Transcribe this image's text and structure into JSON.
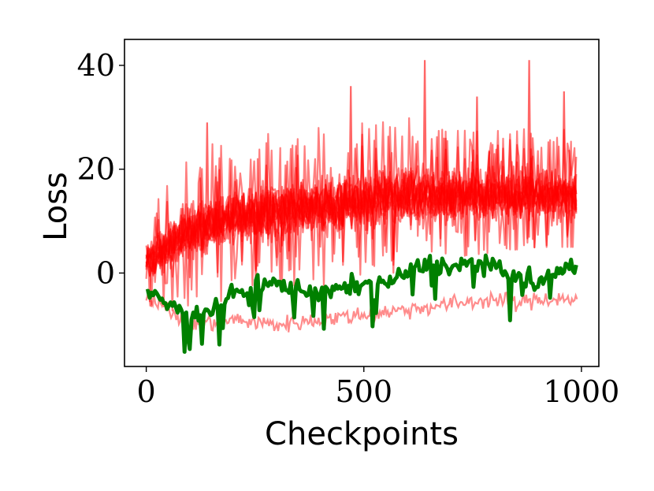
{
  "chart_data": {
    "type": "line",
    "title": "",
    "xlabel": "Checkpoints",
    "ylabel": "Loss",
    "xlim": [
      -50,
      1040
    ],
    "ylim": [
      -18,
      45
    ],
    "x_ticks": [
      0,
      500,
      1000
    ],
    "y_ticks": [
      0,
      20,
      40
    ],
    "grid": false,
    "legend": "none",
    "series": [
      {
        "color": "#ff0000",
        "kind": "red-band",
        "x_start": 0,
        "x_end": 990,
        "trend_x": [
          0,
          100,
          200,
          300,
          400,
          500,
          600,
          700,
          800,
          900,
          990
        ],
        "low": [
          -8,
          -6,
          -3,
          -3,
          -1,
          0,
          3,
          5,
          6,
          7,
          7
        ],
        "mid": [
          2,
          8,
          11,
          12,
          13,
          14,
          15,
          15,
          15,
          15,
          15
        ],
        "high": [
          12,
          22,
          24,
          25,
          26,
          28,
          30,
          30,
          30,
          31,
          31
        ],
        "spikes": [
          [
            140,
            29
          ],
          [
            470,
            36
          ],
          [
            640,
            41
          ],
          [
            760,
            34
          ],
          [
            880,
            41
          ],
          [
            960,
            35
          ]
        ]
      },
      {
        "color": "#ff0000",
        "kind": "red-low-line",
        "x": [
          0,
          100,
          200,
          300,
          400,
          500,
          600,
          700,
          800,
          850,
          900,
          990
        ],
        "y": [
          -4,
          -10,
          -9,
          -10,
          -9,
          -8,
          -7,
          -6,
          -5,
          -6,
          -5,
          -5
        ]
      },
      {
        "color": "#008000",
        "kind": "green",
        "x": [
          0,
          50,
          100,
          150,
          200,
          250,
          300,
          350,
          400,
          450,
          500,
          550,
          600,
          650,
          700,
          750,
          800,
          850,
          900,
          950,
          990
        ],
        "y": [
          -4,
          -6,
          -8,
          -7,
          -4,
          -3,
          -2,
          -3,
          -4,
          -3,
          -2,
          -2,
          0,
          2,
          1,
          2,
          1,
          -1,
          -2,
          0,
          2
        ]
      }
    ]
  }
}
